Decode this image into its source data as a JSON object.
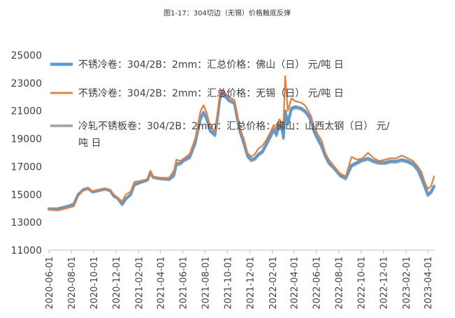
{
  "chart_data": {
    "type": "line",
    "title": "图1-17：304切边（无锡）价格触底反弹",
    "xlabel": "",
    "ylabel": "",
    "ylim": [
      11000,
      25000
    ],
    "yticks": [
      11000,
      13000,
      15000,
      17000,
      19000,
      21000,
      23000,
      25000
    ],
    "xlim": [
      "2020-06-01",
      "2023-04-20"
    ],
    "xticks": [
      "2020-06-01",
      "2020-08-01",
      "2020-10-01",
      "2020-12-01",
      "2021-02-01",
      "2021-04-01",
      "2021-06-01",
      "2021-08-01",
      "2021-10-01",
      "2021-12-01",
      "2022-02-01",
      "2022-04-01",
      "2022-06-01",
      "2022-08-01",
      "2022-10-01",
      "2022-12-01",
      "2023-02-01",
      "2023-04-01"
    ],
    "grid": false,
    "legend_position": "top-left",
    "series": [
      {
        "name": "不锈冷卷：304/2B：2mm：汇总价格：佛山（日） 元/吨 日",
        "color": "#5b9bd5",
        "points": [
          [
            "2020-06-01",
            13950
          ],
          [
            "2020-06-25",
            13950
          ],
          [
            "2020-07-10",
            14050
          ],
          [
            "2020-07-25",
            14150
          ],
          [
            "2020-08-08",
            14300
          ],
          [
            "2020-08-20",
            15000
          ],
          [
            "2020-09-03",
            15350
          ],
          [
            "2020-09-15",
            15450
          ],
          [
            "2020-09-28",
            15200
          ],
          [
            "2020-10-15",
            15300
          ],
          [
            "2020-11-01",
            15400
          ],
          [
            "2020-11-15",
            15300
          ],
          [
            "2020-11-25",
            14900
          ],
          [
            "2020-12-05",
            14750
          ],
          [
            "2020-12-18",
            14300
          ],
          [
            "2020-12-28",
            14700
          ],
          [
            "2021-01-10",
            15000
          ],
          [
            "2021-01-20",
            15700
          ],
          [
            "2021-02-08",
            15900
          ],
          [
            "2021-02-25",
            16050
          ],
          [
            "2021-03-05",
            16600
          ],
          [
            "2021-03-12",
            16250
          ],
          [
            "2021-04-01",
            16150
          ],
          [
            "2021-04-25",
            16100
          ],
          [
            "2021-05-08",
            16400
          ],
          [
            "2021-05-15",
            17200
          ],
          [
            "2021-05-25",
            17250
          ],
          [
            "2021-06-05",
            17500
          ],
          [
            "2021-06-20",
            17700
          ],
          [
            "2021-07-05",
            18700
          ],
          [
            "2021-07-20",
            20500
          ],
          [
            "2021-07-28",
            20900
          ],
          [
            "2021-08-05",
            20500
          ],
          [
            "2021-08-15",
            19600
          ],
          [
            "2021-08-28",
            19300
          ],
          [
            "2021-09-05",
            20700
          ],
          [
            "2021-09-10",
            21800
          ],
          [
            "2021-09-15",
            22300
          ],
          [
            "2021-09-25",
            22100
          ],
          [
            "2021-10-05",
            21800
          ],
          [
            "2021-10-20",
            21600
          ],
          [
            "2021-10-28",
            20500
          ],
          [
            "2021-11-05",
            19500
          ],
          [
            "2021-11-15",
            18700
          ],
          [
            "2021-11-25",
            17800
          ],
          [
            "2021-12-05",
            17500
          ],
          [
            "2021-12-15",
            17600
          ],
          [
            "2021-12-25",
            17900
          ],
          [
            "2022-01-05",
            18100
          ],
          [
            "2022-01-15",
            18600
          ],
          [
            "2022-01-25",
            19100
          ],
          [
            "2022-02-05",
            19700
          ],
          [
            "2022-02-12",
            19300
          ],
          [
            "2022-02-20",
            20000
          ],
          [
            "2022-02-28",
            19700
          ],
          [
            "2022-03-03",
            19100
          ],
          [
            "2022-03-08",
            21000
          ],
          [
            "2022-03-15",
            20100
          ],
          [
            "2022-03-25",
            21200
          ],
          [
            "2022-04-05",
            21300
          ],
          [
            "2022-04-20",
            21200
          ],
          [
            "2022-05-01",
            21000
          ],
          [
            "2022-05-10",
            20700
          ],
          [
            "2022-05-18",
            20300
          ],
          [
            "2022-05-25",
            19600
          ],
          [
            "2022-06-05",
            19000
          ],
          [
            "2022-06-15",
            18500
          ],
          [
            "2022-06-25",
            17800
          ],
          [
            "2022-07-05",
            17300
          ],
          [
            "2022-07-20",
            16900
          ],
          [
            "2022-08-05",
            16400
          ],
          [
            "2022-08-20",
            16200
          ],
          [
            "2022-09-05",
            17100
          ],
          [
            "2022-09-20",
            17300
          ],
          [
            "2022-10-05",
            17500
          ],
          [
            "2022-10-20",
            17600
          ],
          [
            "2022-11-05",
            17400
          ],
          [
            "2022-11-20",
            17300
          ],
          [
            "2022-12-05",
            17300
          ],
          [
            "2022-12-20",
            17400
          ],
          [
            "2023-01-05",
            17400
          ],
          [
            "2023-01-20",
            17500
          ],
          [
            "2023-02-05",
            17400
          ],
          [
            "2023-02-20",
            17200
          ],
          [
            "2023-03-05",
            16800
          ],
          [
            "2023-03-15",
            16200
          ],
          [
            "2023-03-25",
            15500
          ],
          [
            "2023-04-01",
            15000
          ],
          [
            "2023-04-10",
            15200
          ],
          [
            "2023-04-18",
            15600
          ]
        ]
      },
      {
        "name": "不锈冷卷：304/2B：2mm：汇总价格：无锡（日） 元/吨 日",
        "color": "#ed7d31",
        "points": [
          [
            "2020-06-01",
            13900
          ],
          [
            "2020-06-25",
            13850
          ],
          [
            "2020-07-10",
            13950
          ],
          [
            "2020-07-25",
            14050
          ],
          [
            "2020-08-08",
            14150
          ],
          [
            "2020-08-20",
            14900
          ],
          [
            "2020-09-03",
            15300
          ],
          [
            "2020-09-15",
            15400
          ],
          [
            "2020-09-28",
            15250
          ],
          [
            "2020-10-15",
            15350
          ],
          [
            "2020-11-01",
            15450
          ],
          [
            "2020-11-15",
            15350
          ],
          [
            "2020-11-25",
            15000
          ],
          [
            "2020-12-05",
            14800
          ],
          [
            "2020-12-18",
            14500
          ],
          [
            "2020-12-28",
            15000
          ],
          [
            "2021-01-10",
            15200
          ],
          [
            "2021-01-20",
            15900
          ],
          [
            "2021-02-08",
            16000
          ],
          [
            "2021-02-25",
            16100
          ],
          [
            "2021-03-05",
            16700
          ],
          [
            "2021-03-12",
            16300
          ],
          [
            "2021-04-01",
            16200
          ],
          [
            "2021-04-25",
            16200
          ],
          [
            "2021-05-08",
            16700
          ],
          [
            "2021-05-15",
            17500
          ],
          [
            "2021-05-25",
            17400
          ],
          [
            "2021-06-05",
            17600
          ],
          [
            "2021-06-20",
            17900
          ],
          [
            "2021-07-05",
            19000
          ],
          [
            "2021-07-20",
            21000
          ],
          [
            "2021-07-28",
            21400
          ],
          [
            "2021-08-05",
            20900
          ],
          [
            "2021-08-15",
            19900
          ],
          [
            "2021-08-28",
            19500
          ],
          [
            "2021-09-05",
            21000
          ],
          [
            "2021-09-10",
            22000
          ],
          [
            "2021-09-15",
            22500
          ],
          [
            "2021-09-25",
            22300
          ],
          [
            "2021-10-05",
            22000
          ],
          [
            "2021-10-20",
            21800
          ],
          [
            "2021-10-28",
            20800
          ],
          [
            "2021-11-05",
            19700
          ],
          [
            "2021-11-15",
            19000
          ],
          [
            "2021-11-25",
            18000
          ],
          [
            "2021-12-05",
            17700
          ],
          [
            "2021-12-15",
            17900
          ],
          [
            "2021-12-25",
            18300
          ],
          [
            "2022-01-05",
            18500
          ],
          [
            "2022-01-15",
            18900
          ],
          [
            "2022-01-25",
            19400
          ],
          [
            "2022-02-05",
            20000
          ],
          [
            "2022-02-12",
            19700
          ],
          [
            "2022-02-20",
            20400
          ],
          [
            "2022-02-28",
            20100
          ],
          [
            "2022-03-03",
            20000
          ],
          [
            "2022-03-08",
            23500
          ],
          [
            "2022-03-15",
            21000
          ],
          [
            "2022-03-25",
            21900
          ],
          [
            "2022-04-05",
            21700
          ],
          [
            "2022-04-20",
            21600
          ],
          [
            "2022-05-01",
            21400
          ],
          [
            "2022-05-10",
            21000
          ],
          [
            "2022-05-18",
            20600
          ],
          [
            "2022-05-25",
            19900
          ],
          [
            "2022-06-05",
            19300
          ],
          [
            "2022-06-15",
            18900
          ],
          [
            "2022-06-25",
            18000
          ],
          [
            "2022-07-05",
            17500
          ],
          [
            "2022-07-20",
            17000
          ],
          [
            "2022-08-05",
            16500
          ],
          [
            "2022-08-20",
            16300
          ],
          [
            "2022-09-05",
            17700
          ],
          [
            "2022-09-20",
            17500
          ],
          [
            "2022-10-05",
            17600
          ],
          [
            "2022-10-20",
            18000
          ],
          [
            "2022-11-05",
            17600
          ],
          [
            "2022-11-20",
            17400
          ],
          [
            "2022-12-05",
            17500
          ],
          [
            "2022-12-20",
            17600
          ],
          [
            "2023-01-05",
            17600
          ],
          [
            "2023-01-20",
            17800
          ],
          [
            "2023-02-05",
            17600
          ],
          [
            "2023-02-20",
            17400
          ],
          [
            "2023-03-05",
            17000
          ],
          [
            "2023-03-15",
            16600
          ],
          [
            "2023-03-25",
            15800
          ],
          [
            "2023-04-01",
            15400
          ],
          [
            "2023-04-10",
            15600
          ],
          [
            "2023-04-18",
            16300
          ]
        ]
      },
      {
        "name": "冷轧不锈板卷：304/2B：2mm：汇总价格：佛山：山西太钢（日） 元/吨 日",
        "color": "#a5a5a5",
        "points": [
          [
            "2020-06-01",
            14000
          ],
          [
            "2020-06-25",
            14000
          ],
          [
            "2020-07-10",
            14100
          ],
          [
            "2020-07-25",
            14200
          ],
          [
            "2020-08-08",
            14350
          ],
          [
            "2020-08-20",
            15050
          ],
          [
            "2020-09-03",
            15300
          ],
          [
            "2020-09-15",
            15400
          ],
          [
            "2020-09-28",
            15150
          ],
          [
            "2020-10-15",
            15250
          ],
          [
            "2020-11-01",
            15350
          ],
          [
            "2020-11-15",
            15250
          ],
          [
            "2020-11-25",
            14850
          ],
          [
            "2020-12-05",
            14700
          ],
          [
            "2020-12-18",
            14250
          ],
          [
            "2020-12-28",
            14650
          ],
          [
            "2021-01-10",
            14950
          ],
          [
            "2021-01-20",
            15650
          ],
          [
            "2021-02-08",
            15850
          ],
          [
            "2021-02-25",
            16000
          ],
          [
            "2021-03-05",
            16550
          ],
          [
            "2021-03-12",
            16200
          ],
          [
            "2021-04-01",
            16100
          ],
          [
            "2021-04-25",
            16050
          ],
          [
            "2021-05-08",
            16300
          ],
          [
            "2021-05-15",
            17100
          ],
          [
            "2021-05-25",
            17150
          ],
          [
            "2021-06-05",
            17400
          ],
          [
            "2021-06-20",
            17600
          ],
          [
            "2021-07-05",
            18600
          ],
          [
            "2021-07-20",
            20400
          ],
          [
            "2021-07-28",
            20800
          ],
          [
            "2021-08-05",
            20400
          ],
          [
            "2021-08-15",
            19500
          ],
          [
            "2021-08-28",
            19200
          ],
          [
            "2021-09-05",
            20600
          ],
          [
            "2021-09-10",
            21700
          ],
          [
            "2021-09-15",
            22200
          ],
          [
            "2021-09-25",
            22000
          ],
          [
            "2021-10-05",
            21700
          ],
          [
            "2021-10-20",
            21500
          ],
          [
            "2021-10-28",
            20400
          ],
          [
            "2021-11-05",
            19400
          ],
          [
            "2021-11-15",
            18600
          ],
          [
            "2021-11-25",
            17700
          ],
          [
            "2021-12-05",
            17400
          ],
          [
            "2021-12-15",
            17500
          ],
          [
            "2021-12-25",
            17800
          ],
          [
            "2022-01-05",
            18000
          ],
          [
            "2022-01-15",
            18500
          ],
          [
            "2022-01-25",
            19000
          ],
          [
            "2022-02-05",
            19600
          ],
          [
            "2022-02-12",
            19200
          ],
          [
            "2022-02-20",
            19900
          ],
          [
            "2022-02-28",
            19500
          ],
          [
            "2022-03-03",
            19000
          ],
          [
            "2022-03-08",
            20900
          ],
          [
            "2022-03-15",
            20000
          ],
          [
            "2022-03-25",
            21100
          ],
          [
            "2022-04-05",
            21200
          ],
          [
            "2022-04-20",
            21100
          ],
          [
            "2022-05-01",
            20900
          ],
          [
            "2022-05-10",
            20600
          ],
          [
            "2022-05-18",
            20200
          ],
          [
            "2022-05-25",
            19500
          ],
          [
            "2022-06-05",
            18900
          ],
          [
            "2022-06-15",
            18400
          ],
          [
            "2022-06-25",
            17700
          ],
          [
            "2022-07-05",
            17200
          ],
          [
            "2022-07-20",
            16800
          ],
          [
            "2022-08-05",
            16300
          ],
          [
            "2022-08-20",
            16100
          ],
          [
            "2022-09-05",
            17000
          ],
          [
            "2022-09-20",
            17200
          ],
          [
            "2022-10-05",
            17400
          ],
          [
            "2022-10-20",
            17500
          ],
          [
            "2022-11-05",
            17300
          ],
          [
            "2022-11-20",
            17200
          ],
          [
            "2022-12-05",
            17200
          ],
          [
            "2022-12-20",
            17300
          ],
          [
            "2023-01-05",
            17300
          ],
          [
            "2023-01-20",
            17400
          ],
          [
            "2023-02-05",
            17300
          ],
          [
            "2023-02-20",
            17100
          ],
          [
            "2023-03-05",
            16700
          ],
          [
            "2023-03-15",
            16100
          ],
          [
            "2023-03-25",
            15400
          ],
          [
            "2023-04-01",
            14900
          ],
          [
            "2023-04-10",
            15100
          ],
          [
            "2023-04-18",
            15500
          ]
        ]
      }
    ]
  }
}
